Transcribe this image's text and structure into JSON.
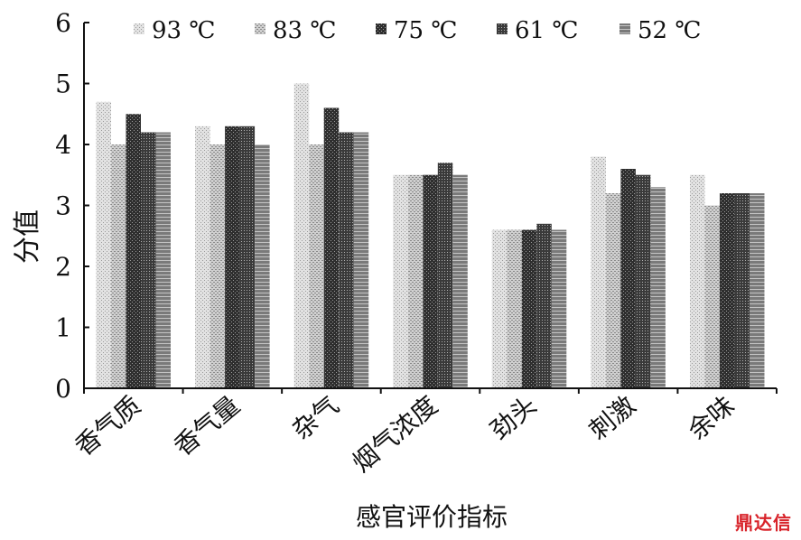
{
  "chart_data": {
    "type": "bar",
    "categories": [
      "香气质",
      "香气量",
      "杂气",
      "烟气浓度",
      "劲头",
      "刺激",
      "余味"
    ],
    "series": [
      {
        "name": "93 ℃",
        "values": [
          4.7,
          4.3,
          5.0,
          3.5,
          2.6,
          3.8,
          3.5
        ],
        "color": "#c8c8c8"
      },
      {
        "name": "83 ℃",
        "values": [
          4.0,
          4.0,
          4.0,
          3.5,
          2.6,
          3.2,
          3.0
        ],
        "color": "#b4b4b4"
      },
      {
        "name": "75 ℃",
        "values": [
          4.5,
          4.3,
          4.6,
          3.5,
          2.6,
          3.6,
          3.2
        ],
        "color": "#4a4a4a"
      },
      {
        "name": "61 ℃",
        "values": [
          4.2,
          4.3,
          4.2,
          3.7,
          2.7,
          3.5,
          3.2
        ],
        "color": "#5e5e5e"
      },
      {
        "name": "52 ℃",
        "values": [
          4.2,
          4.0,
          4.2,
          3.5,
          2.6,
          3.3,
          3.2
        ],
        "color": "#8c8c8c"
      }
    ],
    "ylim": [
      0,
      6
    ],
    "yticks": [
      0,
      1,
      2,
      3,
      4,
      5,
      6
    ],
    "ylabel": "分值",
    "xlabel": "感官评价指标",
    "legend": "top",
    "grid": false
  },
  "watermark": "鼎达信"
}
